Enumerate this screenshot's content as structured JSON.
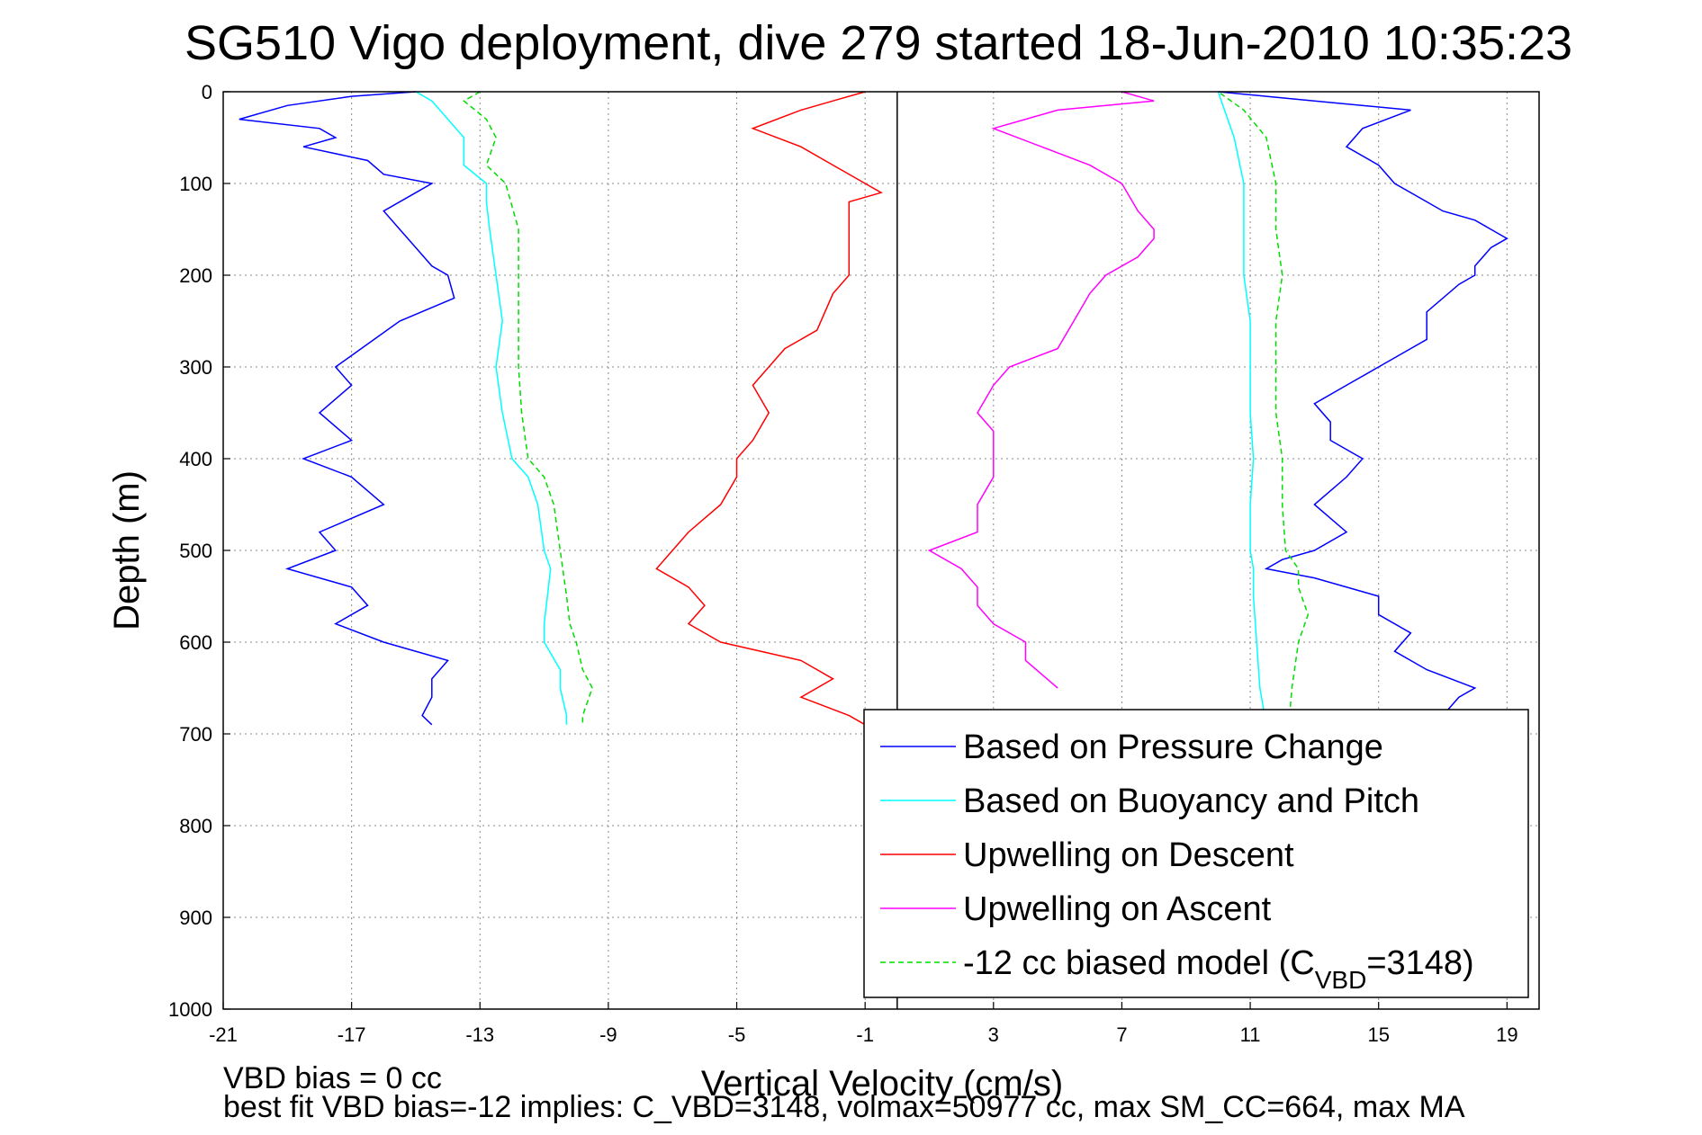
{
  "chart_data": {
    "type": "line",
    "title": "SG510 Vigo deployment, dive 279 started 18-Jun-2010 10:35:23",
    "xlabel": "Vertical Velocity (cm/s)",
    "ylabel": "Depth (m)",
    "xlim": [
      -21,
      20
    ],
    "ylim": [
      0,
      1000
    ],
    "y_reversed": true,
    "grid": true,
    "grid_style": "dotted",
    "legend_position": "lower-right",
    "x_ticks": [
      "-21",
      "-17",
      "-13",
      "-9",
      "-5",
      "-1",
      "3",
      "7",
      "11",
      "15",
      "19"
    ],
    "y_ticks": [
      "0",
      "100",
      "200",
      "300",
      "400",
      "500",
      "600",
      "700",
      "800",
      "900",
      "1000"
    ],
    "vertical_reference_x": 0,
    "footnotes": [
      "VBD bias = 0 cc",
      "best fit VBD bias=-12 implies: C_VBD=3148, volmax=50977 cc, max SM_CC=664, max MA"
    ],
    "series": [
      {
        "name": "Based on Pressure Change",
        "color": "#0000ff",
        "dash": "solid",
        "descent": {
          "depth": [
            0,
            5,
            15,
            30,
            40,
            50,
            60,
            75,
            90,
            100,
            110,
            130,
            150,
            170,
            190,
            200,
            225,
            250,
            275,
            300,
            320,
            350,
            380,
            400,
            420,
            450,
            480,
            500,
            520,
            540,
            560,
            580,
            600,
            620,
            640,
            660,
            680,
            690
          ],
          "velocity": [
            -15,
            -17,
            -19,
            -20.5,
            -18,
            -17.5,
            -18.5,
            -16.5,
            -16,
            -14.5,
            -15,
            -16,
            -15.5,
            -15,
            -14.5,
            -14,
            -13.8,
            -15.5,
            -16.5,
            -17.5,
            -17,
            -18,
            -17,
            -18.5,
            -17,
            -16,
            -18,
            -17.5,
            -19,
            -17,
            -16.5,
            -17.5,
            -16,
            -14,
            -14.5,
            -14.5,
            -14.8,
            -14.5
          ]
        },
        "ascent": {
          "depth": [
            690,
            680,
            660,
            650,
            630,
            610,
            590,
            570,
            550,
            530,
            520,
            510,
            500,
            480,
            450,
            420,
            400,
            380,
            360,
            340,
            320,
            300,
            270,
            240,
            210,
            200,
            190,
            170,
            160,
            150,
            140,
            130,
            120,
            100,
            80,
            60,
            40,
            20,
            10,
            5,
            0
          ],
          "velocity": [
            16.5,
            17,
            17.5,
            18,
            16.5,
            15.5,
            16,
            15,
            15,
            13,
            11.5,
            12,
            13,
            14,
            13,
            14,
            14.5,
            13.5,
            13.5,
            13,
            14,
            15,
            16.5,
            16.5,
            17.5,
            18,
            18,
            18.5,
            19,
            18.5,
            18,
            17,
            16.5,
            15.5,
            15,
            14,
            14.5,
            16,
            13,
            11.5,
            10
          ]
        }
      },
      {
        "name": "Based on Buoyancy and Pitch",
        "color": "#00ffff",
        "dash": "solid",
        "descent": {
          "depth": [
            0,
            10,
            30,
            50,
            80,
            100,
            120,
            150,
            200,
            250,
            300,
            350,
            400,
            420,
            450,
            500,
            520,
            550,
            580,
            600,
            630,
            650,
            680,
            690
          ],
          "velocity": [
            -15,
            -14.5,
            -14,
            -13.5,
            -13.5,
            -12.8,
            -12.8,
            -12.7,
            -12.5,
            -12.3,
            -12.5,
            -12.3,
            -12,
            -11.5,
            -11.2,
            -11,
            -10.8,
            -10.9,
            -11,
            -11,
            -10.5,
            -10.5,
            -10.3,
            -10.3
          ]
        },
        "ascent": {
          "depth": [
            690,
            650,
            600,
            550,
            520,
            500,
            450,
            400,
            350,
            300,
            250,
            200,
            150,
            100,
            50,
            20,
            0
          ],
          "velocity": [
            11.5,
            11.3,
            11.2,
            11.1,
            11.1,
            11,
            11,
            11.1,
            11,
            11,
            11,
            10.8,
            10.8,
            10.8,
            10.5,
            10.2,
            10
          ]
        }
      },
      {
        "name": "Upwelling on Descent",
        "color": "#ff0000",
        "dash": "solid",
        "depth": [
          0,
          10,
          20,
          40,
          60,
          80,
          100,
          110,
          120,
          150,
          180,
          200,
          220,
          260,
          280,
          300,
          320,
          350,
          380,
          400,
          420,
          450,
          480,
          500,
          520,
          540,
          560,
          580,
          600,
          620,
          640,
          660,
          680,
          690
        ],
        "velocity": [
          -1,
          -2,
          -3,
          -4.5,
          -3,
          -2,
          -1,
          -0.5,
          -1.5,
          -1.5,
          -1.5,
          -1.5,
          -2,
          -2.5,
          -3.5,
          -4,
          -4.5,
          -4,
          -4.5,
          -5,
          -5,
          -5.5,
          -6.5,
          -7,
          -7.5,
          -6.5,
          -6,
          -6.5,
          -5.5,
          -3,
          -2,
          -3,
          -1.5,
          -1
        ]
      },
      {
        "name": "Upwelling on Ascent",
        "color": "#ff00ff",
        "dash": "solid",
        "depth": [
          650,
          620,
          600,
          580,
          560,
          540,
          520,
          500,
          480,
          450,
          420,
          400,
          370,
          350,
          320,
          300,
          280,
          250,
          220,
          200,
          180,
          160,
          150,
          130,
          100,
          80,
          60,
          40,
          20,
          10,
          0
        ],
        "velocity": [
          5,
          4,
          4,
          3,
          2.5,
          2.5,
          2,
          1,
          2.5,
          2.5,
          3,
          3,
          3,
          2.5,
          3,
          3.5,
          5,
          5.5,
          6,
          6.5,
          7.5,
          8,
          8,
          7.5,
          7,
          6,
          4.5,
          3,
          5,
          8,
          7
        ]
      },
      {
        "name": "-12 cc biased model (C_VBD=3148)",
        "legend_label": "-12 cc biased model (C",
        "legend_subscript": "VBD",
        "legend_suffix": "=3148)",
        "color": "#00dd00",
        "dash": "dashed",
        "descent": {
          "depth": [
            0,
            10,
            30,
            50,
            80,
            100,
            150,
            200,
            250,
            300,
            350,
            400,
            420,
            450,
            500,
            550,
            580,
            600,
            630,
            650,
            680,
            690
          ],
          "velocity": [
            -13,
            -13.5,
            -12.8,
            -12.5,
            -12.8,
            -12.2,
            -11.8,
            -11.8,
            -11.8,
            -11.8,
            -11.7,
            -11.5,
            -11,
            -10.7,
            -10.5,
            -10.3,
            -10.2,
            -10,
            -9.8,
            -9.5,
            -9.8,
            -9.8
          ]
        },
        "ascent": {
          "depth": [
            690,
            650,
            600,
            570,
            540,
            520,
            500,
            450,
            400,
            350,
            300,
            250,
            200,
            150,
            100,
            50,
            20,
            0
          ],
          "velocity": [
            12.2,
            12.3,
            12.5,
            12.8,
            12.5,
            12.5,
            12.1,
            12,
            12,
            11.8,
            11.8,
            11.8,
            12,
            11.8,
            11.8,
            11.5,
            10.8,
            10
          ]
        }
      }
    ]
  }
}
